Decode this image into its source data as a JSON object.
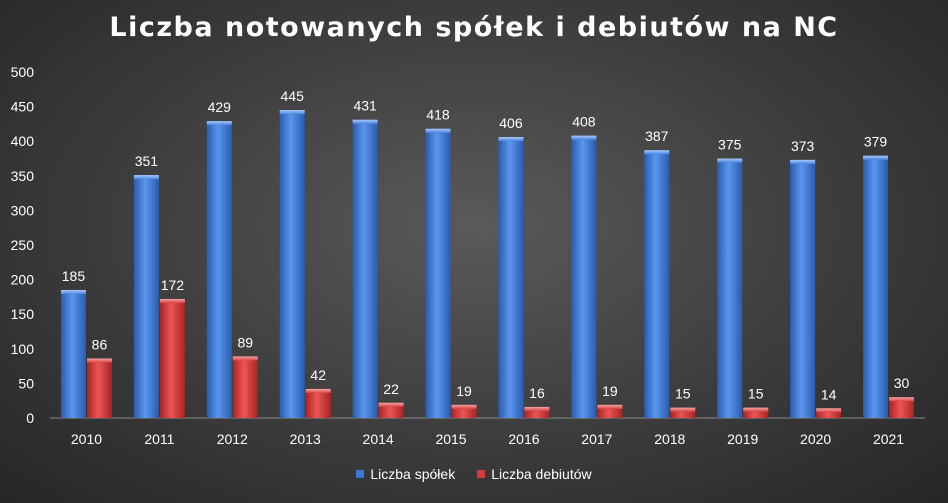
{
  "chart_data": {
    "type": "bar",
    "title": "Liczba notowanych spółek i debiutów na NC",
    "categories": [
      "2010",
      "2011",
      "2012",
      "2013",
      "2014",
      "2015",
      "2016",
      "2017",
      "2018",
      "2019",
      "2020",
      "2021"
    ],
    "series": [
      {
        "name": "Liczba spółek",
        "color": "#3d7ad8",
        "values": [
          185,
          351,
          429,
          445,
          431,
          418,
          406,
          408,
          387,
          375,
          373,
          379
        ]
      },
      {
        "name": "Liczba debiutów",
        "color": "#d63a3a",
        "values": [
          86,
          172,
          89,
          42,
          22,
          19,
          16,
          19,
          15,
          15,
          14,
          30
        ]
      }
    ],
    "ylim": [
      0,
      500
    ],
    "yticks": [
      0,
      50,
      100,
      150,
      200,
      250,
      300,
      350,
      400,
      450,
      500
    ],
    "grid": false,
    "legend_position": "bottom",
    "data_labels": true
  }
}
